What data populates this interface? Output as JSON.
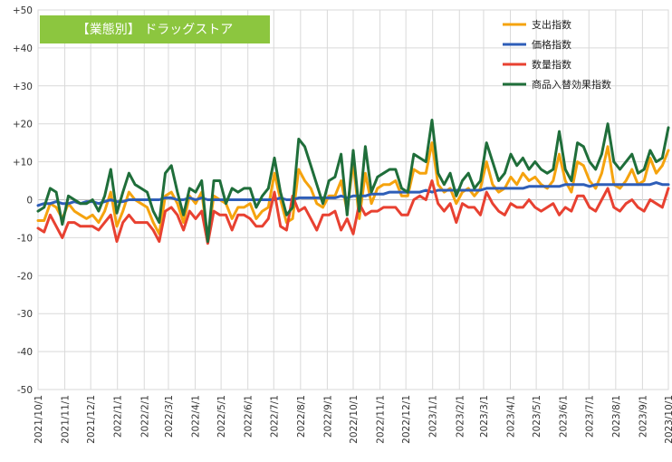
{
  "chart_data": {
    "type": "line",
    "title": "【業態別】 ドラッグストア",
    "xlabel": "",
    "ylabel": "",
    "ylim": [
      -50,
      50
    ],
    "y_ticks": [
      "+50",
      "+40",
      "+30",
      "+20",
      "+10",
      "0",
      "-10",
      "-20",
      "-30",
      "-40",
      "-50"
    ],
    "y_tick_values": [
      50,
      40,
      30,
      20,
      10,
      0,
      -10,
      -20,
      -30,
      -40,
      -50
    ],
    "x_ticks": [
      "2021/10/1",
      "2021/11/1",
      "2021/12/1",
      "2022/1/1",
      "2022/2/1",
      "2022/3/1",
      "2022/4/1",
      "2022/5/1",
      "2022/6/1",
      "2022/7/1",
      "2022/8/1",
      "2022/9/1",
      "2022/10/1",
      "2022/11/1",
      "2022/12/1",
      "2023/1/1",
      "2023/2/1",
      "2023/3/1",
      "2023/4/1",
      "2023/5/1",
      "2023/6/1",
      "2023/7/1",
      "2023/8/1",
      "2023/9/1",
      "2023/10/1"
    ],
    "x_start": "2021/10/1",
    "x_end": "2023/10/1",
    "points_per_series": 105,
    "grid": true,
    "legend_position": "top-right",
    "series": [
      {
        "name": "支出指数",
        "color": "#F5A30E",
        "values": [
          -5.5,
          -5.5,
          -1,
          -2,
          -5,
          -1,
          -3,
          -4,
          -5,
          -4,
          -6,
          -3,
          2,
          -7,
          -3,
          2,
          0,
          -1,
          -2,
          -6,
          -9,
          1,
          2,
          -1,
          -6,
          1,
          -1,
          2,
          -10,
          1,
          0,
          -1,
          -5,
          -2,
          -2,
          -1,
          -5,
          -3,
          -2,
          7,
          0,
          -6,
          -5,
          8,
          5,
          3,
          -1,
          -2,
          1,
          1,
          5,
          -3,
          10,
          -5,
          7,
          -1,
          3,
          4,
          4,
          5,
          1,
          1,
          8,
          7,
          7,
          15,
          4,
          2,
          3,
          -1,
          2,
          3,
          1,
          3,
          10,
          4,
          2,
          3,
          6,
          4,
          7,
          5,
          6,
          4,
          3,
          5,
          12,
          5,
          2,
          10,
          9,
          5,
          3,
          7,
          14,
          4,
          3,
          5,
          8,
          4,
          5,
          11,
          7,
          9,
          13
        ]
      },
      {
        "name": "価格指数",
        "color": "#2E5EB8",
        "values": [
          -1.5,
          -1,
          -1,
          -0.5,
          -1,
          -1,
          -0.5,
          -1,
          -0.5,
          -0.5,
          -1,
          -0.5,
          0,
          -0.5,
          -0.5,
          0,
          0,
          0,
          0,
          0,
          0,
          0.5,
          0.5,
          0,
          0,
          0.5,
          0,
          0.5,
          0,
          0,
          0,
          0,
          0,
          0,
          0,
          0,
          0,
          0,
          0,
          0,
          0.5,
          0,
          0,
          0.5,
          0.5,
          0.5,
          0.5,
          0.5,
          0.5,
          0.5,
          1,
          0.5,
          1,
          1,
          1,
          1.5,
          1.5,
          1.5,
          2,
          2,
          2,
          2,
          2,
          2,
          2.5,
          2,
          2.5,
          2.5,
          2.5,
          2.5,
          2.5,
          2.5,
          2.5,
          2.5,
          3,
          3,
          3,
          3,
          3,
          3,
          3,
          3.5,
          3.5,
          3.5,
          3.5,
          3.5,
          3.5,
          4,
          4,
          4,
          4,
          3.5,
          4,
          4,
          4,
          4,
          4,
          4,
          4,
          4,
          4,
          4,
          4.5,
          4,
          4
        ]
      },
      {
        "name": "数量指数",
        "color": "#E84131",
        "values": [
          -7.5,
          -8.5,
          -4,
          -7,
          -10,
          -6,
          -6,
          -7,
          -7,
          -7,
          -8,
          -6,
          -4,
          -11,
          -6,
          -4,
          -6,
          -6,
          -6,
          -8,
          -11,
          -3,
          -2,
          -4,
          -8,
          -3,
          -5,
          -3,
          -11.5,
          -3,
          -4,
          -4,
          -8,
          -4,
          -4,
          -5,
          -7,
          -7,
          -5,
          2,
          -7,
          -8,
          1,
          -3,
          -2,
          -5,
          -8,
          -4,
          -4,
          -3,
          -8,
          -5,
          -9,
          -1,
          -4,
          -3,
          -3,
          -2,
          -2,
          -2,
          -4,
          -4,
          0,
          1,
          0,
          5,
          -1,
          -3,
          -1,
          -6,
          -1,
          -2,
          -2,
          -4,
          2,
          -1,
          -3,
          -4,
          -1,
          -2,
          -2,
          0,
          -2,
          -3,
          -2,
          -1,
          -4,
          -2,
          -3,
          1,
          1,
          -2,
          -3,
          0,
          3,
          -2,
          -3,
          -1,
          0,
          -2,
          -3,
          0,
          -1,
          -2,
          3
        ]
      },
      {
        "name": "商品入替効果指数",
        "color": "#1F6E3A",
        "values": [
          -3,
          -2,
          3,
          2,
          -6.5,
          1,
          0,
          -1,
          -1,
          0,
          -3,
          1,
          8,
          -3.5,
          2,
          7,
          4,
          3,
          2,
          -3,
          -6,
          7,
          9,
          2,
          -4,
          3,
          2,
          5,
          -11,
          5,
          5,
          -1,
          3,
          2,
          3,
          3,
          -2,
          1,
          3,
          11,
          2,
          -4,
          -2,
          16,
          14,
          9,
          4,
          -1,
          5,
          6,
          12,
          -4,
          13,
          -3,
          14,
          2,
          6,
          7,
          8,
          8,
          3,
          2,
          12,
          11,
          10,
          21,
          7,
          4,
          7,
          1,
          5,
          7,
          3,
          5,
          15,
          10,
          5,
          7,
          12,
          9,
          11,
          8,
          10,
          8,
          7,
          8,
          18,
          8,
          5,
          15,
          14,
          10,
          8,
          12,
          20,
          10,
          8,
          10,
          12,
          7,
          8,
          13,
          10,
          11,
          19
        ]
      }
    ]
  }
}
